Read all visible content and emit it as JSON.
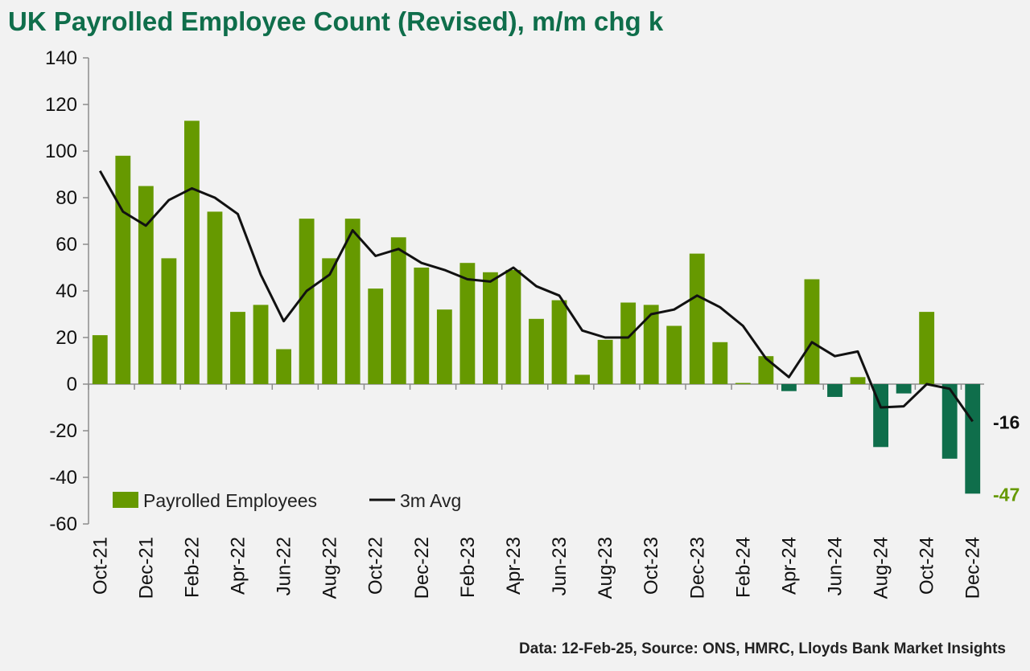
{
  "header": {
    "title": "UK Payrolled Employee Count (Revised), m/m chg k"
  },
  "footer": {
    "source": "Data: 12-Feb-25, Source: ONS, HMRC, Lloyds Bank Market Insights"
  },
  "colors": {
    "positive_bar": "#669900",
    "negative_bar": "#0f6e4b",
    "avg_line": "#111111",
    "title": "#0f6e4b"
  },
  "chart_data": {
    "type": "bar",
    "title": "UK Payrolled Employee Count (Revised), m/m chg k",
    "xlabel": "",
    "ylabel": "",
    "ylim": [
      -60,
      140
    ],
    "yticks": [
      140,
      120,
      100,
      80,
      60,
      40,
      20,
      0,
      -20,
      -40,
      -60
    ],
    "categories": [
      "Oct-21",
      "Nov-21",
      "Dec-21",
      "Jan-22",
      "Feb-22",
      "Mar-22",
      "Apr-22",
      "May-22",
      "Jun-22",
      "Jul-22",
      "Aug-22",
      "Sep-22",
      "Oct-22",
      "Nov-22",
      "Dec-22",
      "Jan-23",
      "Feb-23",
      "Mar-23",
      "Apr-23",
      "May-23",
      "Jun-23",
      "Jul-23",
      "Aug-23",
      "Sep-23",
      "Oct-23",
      "Nov-23",
      "Dec-23",
      "Jan-24",
      "Feb-24",
      "Mar-24",
      "Apr-24",
      "May-24",
      "Jun-24",
      "Jul-24",
      "Aug-24",
      "Sep-24",
      "Oct-24",
      "Nov-24",
      "Dec-24"
    ],
    "tick_labels": [
      "Oct-21",
      "Dec-21",
      "Feb-22",
      "Apr-22",
      "Jun-22",
      "Aug-22",
      "Oct-22",
      "Dec-22",
      "Feb-23",
      "Apr-23",
      "Jun-23",
      "Aug-23",
      "Oct-23",
      "Dec-23",
      "Feb-24",
      "Apr-24",
      "Jun-24",
      "Aug-24",
      "Oct-24",
      "Dec-24"
    ],
    "series": [
      {
        "name": "Payrolled Employees",
        "type": "bar",
        "values": [
          21,
          98,
          85,
          54,
          113,
          74,
          31,
          34,
          15,
          71,
          54,
          71,
          41,
          63,
          50,
          32,
          52,
          48,
          49,
          28,
          36,
          4,
          19,
          35,
          34,
          25,
          56,
          18,
          0.5,
          12,
          -3,
          45,
          -5.5,
          3,
          -27,
          -4,
          31,
          -32,
          -47
        ]
      },
      {
        "name": "3m Avg",
        "type": "line",
        "values": [
          91.5,
          74,
          68,
          79,
          84,
          80,
          73,
          47,
          27,
          40,
          47,
          66,
          55,
          58,
          52,
          49,
          45,
          44,
          50,
          42,
          38,
          23,
          20,
          20,
          30,
          32,
          38,
          33,
          25,
          11,
          3,
          18,
          12,
          14,
          -10,
          -9.5,
          0,
          -2,
          -16
        ]
      }
    ],
    "annotations": [
      {
        "series": "3m Avg",
        "text": "-16"
      },
      {
        "series": "Payrolled Employees",
        "text": "-47"
      }
    ],
    "legend": {
      "position": "bottom-left",
      "entries": [
        "Payrolled Employees",
        "3m Avg"
      ]
    }
  }
}
